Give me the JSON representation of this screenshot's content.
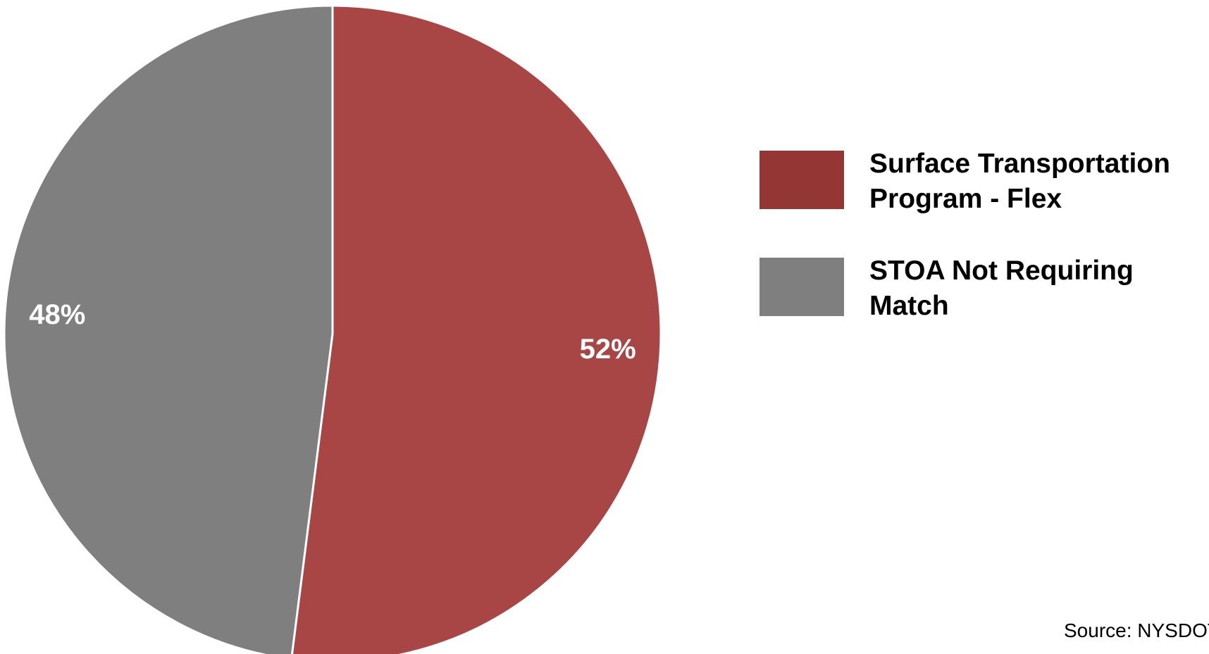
{
  "chart_data": {
    "type": "pie",
    "slices": [
      {
        "label": "Surface Transportation Program - Flex",
        "value": 52,
        "value_label": "52%",
        "color": "#a84645"
      },
      {
        "label": "STOA Not Requiring Match",
        "value": 48,
        "value_label": "48%",
        "color": "#7f7f7f"
      }
    ],
    "legend": {
      "placement": "right",
      "items": [
        {
          "label": "Surface Transportation Program - Flex",
          "color": "#943634"
        },
        {
          "label": "STOA Not Requiring Match",
          "color": "#7f7f7f"
        }
      ]
    },
    "source": "Source: NYSDOT",
    "start_angle": "12 o'clock",
    "direction": "clockwise"
  }
}
